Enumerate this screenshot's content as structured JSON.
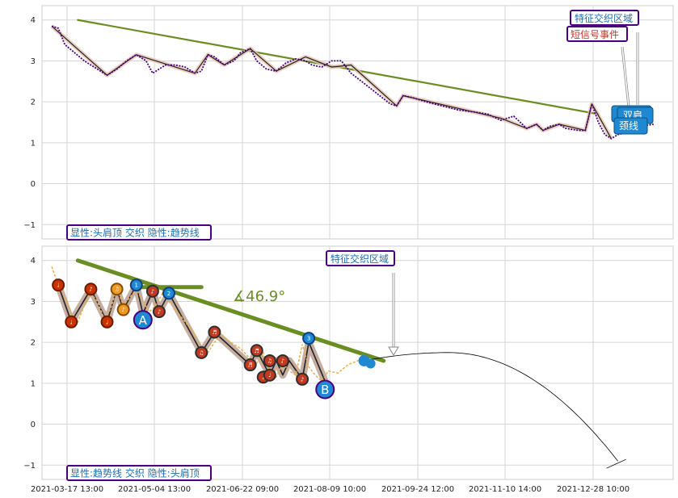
{
  "chart_data": [
    {
      "type": "line",
      "panel": "top",
      "ylim": [
        -1.35,
        4.35
      ],
      "yticks": [
        -1,
        0,
        1,
        2,
        3,
        4
      ],
      "grid": true,
      "colors": {
        "price": "#4b0082",
        "trend": "#6b8e23",
        "zigzag": "#222222"
      },
      "trendline": {
        "start": [
          0.08,
          4.0
        ],
        "end": [
          1.68,
          1.7
        ]
      },
      "price": [
        [
          0,
          3.85
        ],
        [
          0.02,
          3.8
        ],
        [
          0.04,
          3.4
        ],
        [
          0.07,
          3.2
        ],
        [
          0.1,
          3.0
        ],
        [
          0.14,
          2.8
        ],
        [
          0.17,
          2.65
        ],
        [
          0.2,
          2.8
        ],
        [
          0.23,
          3.0
        ],
        [
          0.26,
          3.15
        ],
        [
          0.29,
          3.0
        ],
        [
          0.31,
          2.7
        ],
        [
          0.33,
          2.8
        ],
        [
          0.35,
          2.9
        ],
        [
          0.38,
          2.9
        ],
        [
          0.41,
          2.85
        ],
        [
          0.44,
          2.7
        ],
        [
          0.46,
          2.75
        ],
        [
          0.48,
          3.15
        ],
        [
          0.5,
          3.1
        ],
        [
          0.53,
          2.9
        ],
        [
          0.56,
          3.0
        ],
        [
          0.58,
          3.2
        ],
        [
          0.61,
          3.3
        ],
        [
          0.63,
          3.0
        ],
        [
          0.66,
          2.8
        ],
        [
          0.69,
          2.75
        ],
        [
          0.72,
          2.95
        ],
        [
          0.75,
          3.05
        ],
        [
          0.78,
          3.0
        ],
        [
          0.8,
          2.9
        ],
        [
          0.83,
          2.85
        ],
        [
          0.86,
          3.0
        ],
        [
          0.89,
          3.0
        ],
        [
          0.92,
          2.7
        ],
        [
          0.96,
          2.45
        ],
        [
          1.0,
          2.2
        ],
        [
          1.04,
          1.95
        ],
        [
          1.06,
          1.9
        ],
        [
          1.08,
          2.15
        ],
        [
          1.11,
          2.1
        ],
        [
          1.15,
          2.0
        ],
        [
          1.2,
          1.9
        ],
        [
          1.25,
          1.8
        ],
        [
          1.3,
          1.75
        ],
        [
          1.34,
          1.7
        ],
        [
          1.38,
          1.55
        ],
        [
          1.42,
          1.65
        ],
        [
          1.44,
          1.5
        ],
        [
          1.46,
          1.35
        ],
        [
          1.49,
          1.45
        ],
        [
          1.51,
          1.3
        ],
        [
          1.53,
          1.4
        ],
        [
          1.56,
          1.45
        ],
        [
          1.58,
          1.35
        ],
        [
          1.62,
          1.3
        ],
        [
          1.64,
          1.3
        ],
        [
          1.66,
          1.95
        ],
        [
          1.68,
          1.5
        ],
        [
          1.7,
          1.2
        ],
        [
          1.72,
          1.1
        ],
        [
          1.74,
          1.2
        ],
        [
          1.77,
          1.25
        ],
        [
          1.8,
          1.4
        ],
        [
          1.85,
          1.45
        ]
      ],
      "zigzag": [
        [
          0,
          3.85
        ],
        [
          0.17,
          2.65
        ],
        [
          0.26,
          3.15
        ],
        [
          0.44,
          2.7
        ],
        [
          0.48,
          3.15
        ],
        [
          0.53,
          2.9
        ],
        [
          0.61,
          3.3
        ],
        [
          0.69,
          2.75
        ],
        [
          0.78,
          3.1
        ],
        [
          0.86,
          2.85
        ],
        [
          0.92,
          2.9
        ],
        [
          1.06,
          1.9
        ],
        [
          1.08,
          2.15
        ],
        [
          1.38,
          1.6
        ],
        [
          1.46,
          1.35
        ],
        [
          1.49,
          1.45
        ],
        [
          1.51,
          1.3
        ],
        [
          1.56,
          1.45
        ],
        [
          1.64,
          1.3
        ],
        [
          1.66,
          1.95
        ],
        [
          1.72,
          1.1
        ]
      ],
      "callouts": {
        "zone": "特征交织区域",
        "signal": "短信号事件",
        "box1": "双肩",
        "box2": "颈线"
      },
      "legend": "显性:头肩顶 交织 隐性:趋势线"
    },
    {
      "type": "line",
      "panel": "bottom",
      "ylim": [
        -1.35,
        4.35
      ],
      "yticks": [
        -1,
        0,
        1,
        2,
        3,
        4
      ],
      "grid": true,
      "colors": {
        "price": "#e8b048",
        "trend": "#6b8e23",
        "zigzag": "#222222",
        "projection": "#000000"
      },
      "trendline": {
        "start": [
          0.08,
          4.0
        ],
        "end": [
          1.02,
          1.55
        ]
      },
      "angle_label": "∡46.9°",
      "price": [
        [
          0,
          3.85
        ],
        [
          0.02,
          3.4
        ],
        [
          0.04,
          3.1
        ],
        [
          0.06,
          2.7
        ],
        [
          0.08,
          2.5
        ],
        [
          0.1,
          2.9
        ],
        [
          0.12,
          3.2
        ],
        [
          0.14,
          3.0
        ],
        [
          0.16,
          2.6
        ],
        [
          0.18,
          2.8
        ],
        [
          0.2,
          3.3
        ],
        [
          0.22,
          2.9
        ],
        [
          0.24,
          3.1
        ],
        [
          0.26,
          3.3
        ],
        [
          0.28,
          3.0
        ],
        [
          0.3,
          2.75
        ],
        [
          0.32,
          2.9
        ],
        [
          0.34,
          3.2
        ],
        [
          0.36,
          3.0
        ],
        [
          0.38,
          2.8
        ],
        [
          0.4,
          2.6
        ],
        [
          0.42,
          2.4
        ],
        [
          0.44,
          2.2
        ],
        [
          0.46,
          1.9
        ],
        [
          0.48,
          1.75
        ],
        [
          0.5,
          2.0
        ],
        [
          0.52,
          2.2
        ],
        [
          0.55,
          2.0
        ],
        [
          0.58,
          1.85
        ],
        [
          0.61,
          1.6
        ],
        [
          0.63,
          1.5
        ],
        [
          0.65,
          1.75
        ],
        [
          0.67,
          1.3
        ],
        [
          0.69,
          1.15
        ],
        [
          0.71,
          1.5
        ],
        [
          0.73,
          1.3
        ],
        [
          0.75,
          1.2
        ],
        [
          0.77,
          1.95
        ],
        [
          0.79,
          1.4
        ],
        [
          0.81,
          1.2
        ],
        [
          0.83,
          1.05
        ],
        [
          0.85,
          1.3
        ],
        [
          0.88,
          1.25
        ],
        [
          0.91,
          1.45
        ],
        [
          0.94,
          1.55
        ],
        [
          0.96,
          1.6
        ]
      ],
      "zigzag": [
        [
          0.02,
          3.4
        ],
        [
          0.06,
          2.5
        ],
        [
          0.12,
          3.3
        ],
        [
          0.17,
          2.5
        ],
        [
          0.2,
          3.3
        ],
        [
          0.22,
          2.8
        ],
        [
          0.26,
          3.4
        ],
        [
          0.28,
          2.7
        ],
        [
          0.31,
          3.25
        ],
        [
          0.33,
          2.75
        ],
        [
          0.36,
          3.2
        ],
        [
          0.46,
          1.75
        ],
        [
          0.5,
          2.25
        ],
        [
          0.61,
          1.45
        ],
        [
          0.63,
          1.8
        ],
        [
          0.67,
          1.2
        ],
        [
          0.69,
          1.55
        ],
        [
          0.71,
          1.2
        ],
        [
          0.73,
          1.55
        ],
        [
          0.77,
          1.1
        ],
        [
          0.79,
          2.0
        ],
        [
          0.84,
          1.05
        ]
      ],
      "projection": {
        "start": [
          0.96,
          1.55
        ],
        "peak": [
          1.22,
          1.75
        ],
        "end": [
          1.74,
          -0.9
        ]
      },
      "markers": [
        {
          "x": 0.02,
          "y": 3.4,
          "kind": "red",
          "label": "♩"
        },
        {
          "x": 0.06,
          "y": 2.5,
          "kind": "red",
          "label": "♩"
        },
        {
          "x": 0.12,
          "y": 3.3,
          "kind": "red",
          "label": "♪"
        },
        {
          "x": 0.17,
          "y": 2.5,
          "kind": "red",
          "label": "♩"
        },
        {
          "x": 0.2,
          "y": 3.3,
          "kind": "orange",
          "label": "♫"
        },
        {
          "x": 0.22,
          "y": 2.8,
          "kind": "orange",
          "label": "♪"
        },
        {
          "x": 0.26,
          "y": 3.4,
          "kind": "blue",
          "label": "1"
        },
        {
          "x": 0.31,
          "y": 3.25,
          "kind": "dark",
          "label": "♪"
        },
        {
          "x": 0.33,
          "y": 2.75,
          "kind": "dark",
          "label": "♪"
        },
        {
          "x": 0.36,
          "y": 3.2,
          "kind": "blue",
          "label": "2"
        },
        {
          "x": 0.46,
          "y": 1.75,
          "kind": "dark",
          "label": "♫"
        },
        {
          "x": 0.5,
          "y": 2.25,
          "kind": "dark",
          "label": "♬"
        },
        {
          "x": 0.61,
          "y": 1.45,
          "kind": "dark",
          "label": "♬"
        },
        {
          "x": 0.63,
          "y": 1.8,
          "kind": "dark",
          "label": "♬"
        },
        {
          "x": 0.65,
          "y": 1.15,
          "kind": "dark",
          "label": "♩"
        },
        {
          "x": 0.67,
          "y": 1.2,
          "kind": "dark",
          "label": "♩"
        },
        {
          "x": 0.67,
          "y": 1.55,
          "kind": "dark",
          "label": "♫"
        },
        {
          "x": 0.71,
          "y": 1.55,
          "kind": "dark",
          "label": "♪"
        },
        {
          "x": 0.77,
          "y": 1.1,
          "kind": "dark",
          "label": "♪"
        },
        {
          "x": 0.79,
          "y": 2.1,
          "kind": "blue",
          "label": "3"
        }
      ],
      "big_markers": [
        {
          "x": 0.28,
          "y": 2.55,
          "label": "A"
        },
        {
          "x": 0.84,
          "y": 0.85,
          "label": "B"
        }
      ],
      "callouts": {
        "zone": "特征交织区域"
      },
      "legend": "显性:趋势线 交织 隐性:头肩顶"
    }
  ],
  "x_axis": {
    "labels": [
      "2021-03-17 13:00",
      "2021-05-04 13:00",
      "2021-06-22 09:00",
      "2021-08-09 10:00",
      "2021-09-24 12:00",
      "2021-11-10 14:00",
      "2021-12-28 10:00"
    ],
    "xlim": [
      -0.03,
      1.91
    ]
  }
}
